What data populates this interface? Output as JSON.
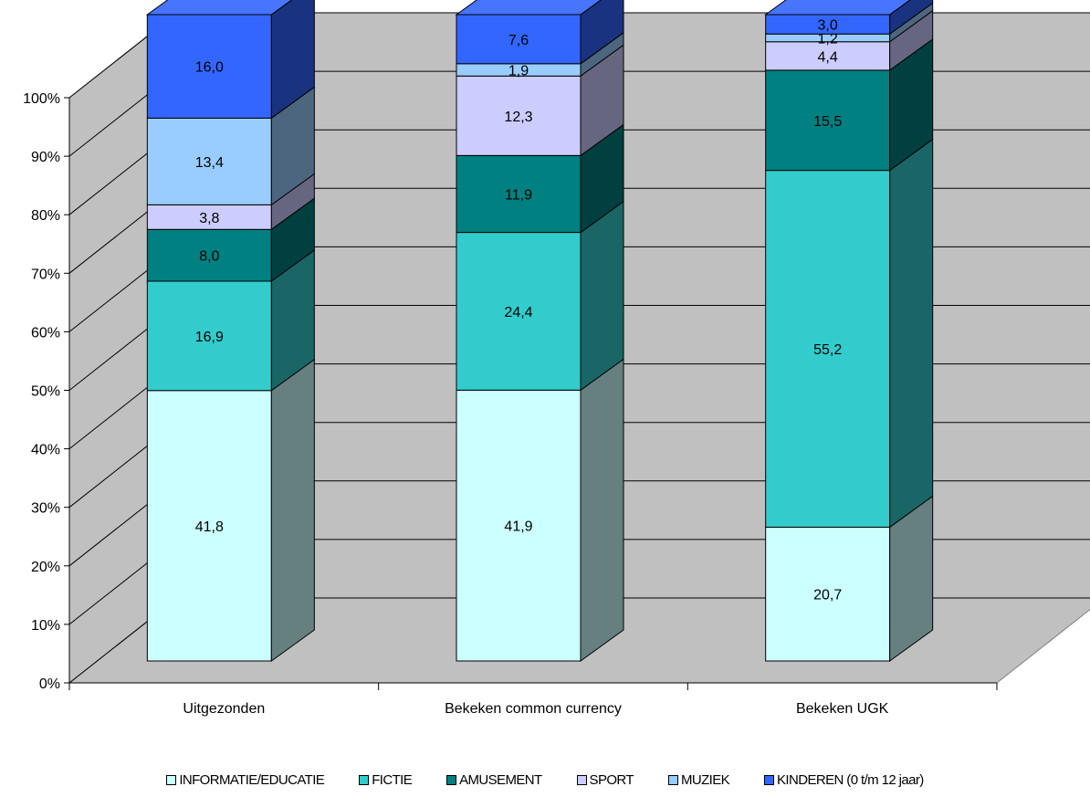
{
  "chart_data": {
    "type": "bar",
    "stacked": true,
    "percent_stacked": true,
    "three_d": true,
    "categories": [
      "Uitgezonden",
      "Bekeken common currency",
      "Bekeken UGK"
    ],
    "series": [
      {
        "name": "INFORMATIE/EDUCATIE",
        "color": "#ccffff",
        "values": [
          41.8,
          41.9,
          20.7
        ]
      },
      {
        "name": "FICTIE",
        "color": "#33cccc",
        "values": [
          16.9,
          24.4,
          55.2
        ]
      },
      {
        "name": "AMUSEMENT",
        "color": "#008080",
        "values": [
          8.0,
          11.9,
          15.5
        ]
      },
      {
        "name": "SPORT",
        "color": "#ccccff",
        "values": [
          3.8,
          12.3,
          4.4
        ]
      },
      {
        "name": "MUZIEK",
        "color": "#99ccff",
        "values": [
          13.4,
          1.9,
          1.2
        ]
      },
      {
        "name": "KINDEREN (0 t/m 12 jaar)",
        "color": "#3366ff",
        "values": [
          16.0,
          7.6,
          3.0
        ]
      }
    ],
    "data_labels": [
      [
        "41,8",
        "41,9",
        "20,7"
      ],
      [
        "16,9",
        "24,4",
        "55,2"
      ],
      [
        "8,0",
        "11,9",
        "15,5"
      ],
      [
        "3,8",
        "12,3",
        "4,4"
      ],
      [
        "13,4",
        "1,9",
        "1,2"
      ],
      [
        "16,0",
        "7,6",
        "3,0"
      ]
    ],
    "yticks": [
      "0%",
      "10%",
      "20%",
      "30%",
      "40%",
      "50%",
      "60%",
      "70%",
      "80%",
      "90%",
      "100%"
    ],
    "ylim": [
      0,
      100
    ],
    "grid": true,
    "legend_position": "bottom",
    "wall_color": "#c0c0c0",
    "title": "",
    "xlabel": "",
    "ylabel": ""
  }
}
